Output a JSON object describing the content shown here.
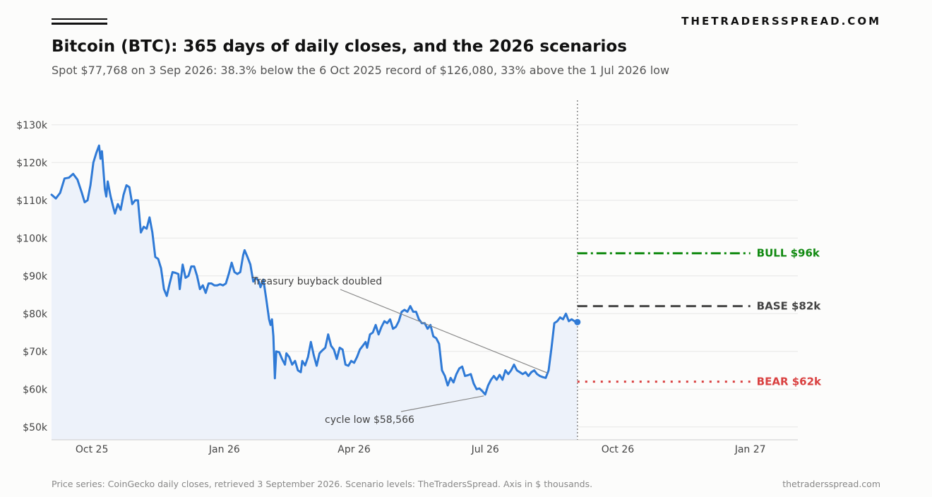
{
  "header": {
    "brand": "THETRADERSSPREAD.COM",
    "title": "Bitcoin (BTC): 365 days of daily closes, and the 2026 scenarios",
    "subtitle": "Spot $77,768 on 3 Sep 2026: 38.3% below the 6 Oct 2025 record of $126,080, 33% above the 1 Jul 2026 low"
  },
  "footer": {
    "source": "Price series: CoinGecko daily closes, retrieved 3 September 2026. Scenario levels: TheTradersSpread. Axis in $ thousands.",
    "site": "thetradersspread.com"
  },
  "chart_data": {
    "type": "line",
    "x_type": "date",
    "x_range": [
      "2025-09-03",
      "2027-02-03"
    ],
    "y_range": [
      46.6,
      136.5
    ],
    "y_ticks": [
      50,
      60,
      70,
      80,
      90,
      100,
      110,
      120,
      130
    ],
    "y_tick_labels": [
      "$50k",
      "$60k",
      "$70k",
      "$80k",
      "$90k",
      "$100k",
      "$110k",
      "$120k",
      "$130k"
    ],
    "x_ticks": [
      "2025-10-01",
      "2026-01-01",
      "2026-04-01",
      "2026-07-01",
      "2026-10-01",
      "2027-01-01"
    ],
    "x_tick_labels": [
      "Oct 25",
      "Jan 26",
      "Apr 26",
      "Jul 26",
      "Oct 26",
      "Jan 27"
    ],
    "grid": "horizontal",
    "colors": {
      "series": "#2f7ad6",
      "fill": "#edf2fa",
      "bull": "#118a11",
      "base": "#444444",
      "bear": "#d94040",
      "vline": "#888888"
    },
    "series": [
      {
        "points": [
          [
            "2025-09-03",
            111.5
          ],
          [
            "2025-09-06",
            110.5
          ],
          [
            "2025-09-09",
            112
          ],
          [
            "2025-09-12",
            115.8
          ],
          [
            "2025-09-15",
            116
          ],
          [
            "2025-09-18",
            117
          ],
          [
            "2025-09-21",
            115.5
          ],
          [
            "2025-09-24",
            112
          ],
          [
            "2025-09-26",
            109.5
          ],
          [
            "2025-09-28",
            110
          ],
          [
            "2025-09-30",
            114
          ],
          [
            "2025-10-02",
            120
          ],
          [
            "2025-10-04",
            122.5
          ],
          [
            "2025-10-06",
            124.5
          ],
          [
            "2025-10-07",
            121
          ],
          [
            "2025-10-08",
            123
          ],
          [
            "2025-10-10",
            113
          ],
          [
            "2025-10-11",
            111
          ],
          [
            "2025-10-12",
            115
          ],
          [
            "2025-10-14",
            111
          ],
          [
            "2025-10-16",
            108
          ],
          [
            "2025-10-17",
            106.5
          ],
          [
            "2025-10-19",
            109
          ],
          [
            "2025-10-21",
            107.5
          ],
          [
            "2025-10-23",
            111.5
          ],
          [
            "2025-10-25",
            114
          ],
          [
            "2025-10-27",
            113.5
          ],
          [
            "2025-10-29",
            109
          ],
          [
            "2025-10-31",
            110
          ],
          [
            "2025-11-02",
            110
          ],
          [
            "2025-11-04",
            101.5
          ],
          [
            "2025-11-06",
            103
          ],
          [
            "2025-11-08",
            102.5
          ],
          [
            "2025-11-10",
            105.5
          ],
          [
            "2025-11-12",
            101.5
          ],
          [
            "2025-11-14",
            95
          ],
          [
            "2025-11-16",
            94.5
          ],
          [
            "2025-11-18",
            92
          ],
          [
            "2025-11-20",
            86.5
          ],
          [
            "2025-11-22",
            84.7
          ],
          [
            "2025-11-24",
            88
          ],
          [
            "2025-11-26",
            91
          ],
          [
            "2025-11-28",
            90.8
          ],
          [
            "2025-11-30",
            90.5
          ],
          [
            "2025-12-01",
            86.5
          ],
          [
            "2025-12-03",
            93
          ],
          [
            "2025-12-05",
            89.5
          ],
          [
            "2025-12-07",
            90
          ],
          [
            "2025-12-09",
            92.5
          ],
          [
            "2025-12-11",
            92.5
          ],
          [
            "2025-12-13",
            90
          ],
          [
            "2025-12-15",
            86.5
          ],
          [
            "2025-12-17",
            87.5
          ],
          [
            "2025-12-19",
            85.5
          ],
          [
            "2025-12-21",
            88
          ],
          [
            "2025-12-23",
            88
          ],
          [
            "2025-12-25",
            87.5
          ],
          [
            "2025-12-27",
            87.5
          ],
          [
            "2025-12-29",
            87.8
          ],
          [
            "2025-12-31",
            87.5
          ],
          [
            "2026-01-02",
            88
          ],
          [
            "2026-01-04",
            90.5
          ],
          [
            "2026-01-06",
            93.5
          ],
          [
            "2026-01-08",
            91
          ],
          [
            "2026-01-10",
            90.5
          ],
          [
            "2026-01-12",
            91
          ],
          [
            "2026-01-14",
            95.5
          ],
          [
            "2026-01-15",
            96.8
          ],
          [
            "2026-01-17",
            95
          ],
          [
            "2026-01-19",
            93
          ],
          [
            "2026-01-21",
            88.5
          ],
          [
            "2026-01-23",
            89.5
          ],
          [
            "2026-01-25",
            88.5
          ],
          [
            "2026-01-26",
            87
          ],
          [
            "2026-01-28",
            89
          ],
          [
            "2026-01-30",
            84
          ],
          [
            "2026-02-01",
            78.5
          ],
          [
            "2026-02-02",
            77
          ],
          [
            "2026-02-03",
            78.5
          ],
          [
            "2026-02-04",
            74
          ],
          [
            "2026-02-05",
            62.9
          ],
          [
            "2026-02-06",
            70
          ],
          [
            "2026-02-08",
            69.8
          ],
          [
            "2026-02-10",
            68
          ],
          [
            "2026-02-12",
            66.5
          ],
          [
            "2026-02-13",
            69.5
          ],
          [
            "2026-02-15",
            68.5
          ],
          [
            "2026-02-17",
            66.5
          ],
          [
            "2026-02-19",
            67.5
          ],
          [
            "2026-02-21",
            65
          ],
          [
            "2026-02-23",
            64.5
          ],
          [
            "2026-02-24",
            67.5
          ],
          [
            "2026-02-26",
            66.3
          ],
          [
            "2026-02-28",
            68.5
          ],
          [
            "2026-03-02",
            72.5
          ],
          [
            "2026-03-04",
            69
          ],
          [
            "2026-03-06",
            66.2
          ],
          [
            "2026-03-08",
            69.5
          ],
          [
            "2026-03-10",
            70.3
          ],
          [
            "2026-03-12",
            71
          ],
          [
            "2026-03-14",
            74.5
          ],
          [
            "2026-03-16",
            71.5
          ],
          [
            "2026-03-18",
            70.5
          ],
          [
            "2026-03-20",
            68
          ],
          [
            "2026-03-22",
            71
          ],
          [
            "2026-03-24",
            70.5
          ],
          [
            "2026-03-26",
            66.5
          ],
          [
            "2026-03-28",
            66.2
          ],
          [
            "2026-03-30",
            67.5
          ],
          [
            "2026-04-01",
            67
          ],
          [
            "2026-04-03",
            68.5
          ],
          [
            "2026-04-05",
            70.5
          ],
          [
            "2026-04-07",
            71.5
          ],
          [
            "2026-04-09",
            72.5
          ],
          [
            "2026-04-10",
            71
          ],
          [
            "2026-04-12",
            74.5
          ],
          [
            "2026-04-14",
            75
          ],
          [
            "2026-04-16",
            77
          ],
          [
            "2026-04-18",
            74.5
          ],
          [
            "2026-04-20",
            76.5
          ],
          [
            "2026-04-22",
            78
          ],
          [
            "2026-04-24",
            77.5
          ],
          [
            "2026-04-26",
            78.5
          ],
          [
            "2026-04-28",
            76
          ],
          [
            "2026-04-30",
            76.5
          ],
          [
            "2026-05-02",
            78
          ],
          [
            "2026-05-04",
            80.5
          ],
          [
            "2026-05-06",
            81
          ],
          [
            "2026-05-08",
            80.5
          ],
          [
            "2026-05-10",
            82
          ],
          [
            "2026-05-12",
            80.5
          ],
          [
            "2026-05-14",
            80.5
          ],
          [
            "2026-05-16",
            78.5
          ],
          [
            "2026-05-18",
            77.5
          ],
          [
            "2026-05-20",
            77.5
          ],
          [
            "2026-05-22",
            76
          ],
          [
            "2026-05-24",
            77
          ],
          [
            "2026-05-26",
            74
          ],
          [
            "2026-05-28",
            73.5
          ],
          [
            "2026-05-30",
            72
          ],
          [
            "2026-06-01",
            65
          ],
          [
            "2026-06-03",
            63.5
          ],
          [
            "2026-06-05",
            61
          ],
          [
            "2026-06-07",
            63
          ],
          [
            "2026-06-09",
            61.8
          ],
          [
            "2026-06-11",
            64
          ],
          [
            "2026-06-13",
            65.5
          ],
          [
            "2026-06-15",
            66
          ],
          [
            "2026-06-17",
            63.5
          ],
          [
            "2026-06-19",
            63.7
          ],
          [
            "2026-06-21",
            64
          ],
          [
            "2026-06-23",
            61.5
          ],
          [
            "2026-06-25",
            60
          ],
          [
            "2026-06-27",
            60.2
          ],
          [
            "2026-06-29",
            59.5
          ],
          [
            "2026-07-01",
            58.6
          ],
          [
            "2026-07-03",
            61
          ],
          [
            "2026-07-05",
            62.5
          ],
          [
            "2026-07-07",
            63.5
          ],
          [
            "2026-07-09",
            62.5
          ],
          [
            "2026-07-11",
            63.8
          ],
          [
            "2026-07-13",
            62.5
          ],
          [
            "2026-07-15",
            65
          ],
          [
            "2026-07-17",
            64
          ],
          [
            "2026-07-19",
            65
          ],
          [
            "2026-07-21",
            66.5
          ],
          [
            "2026-07-23",
            65
          ],
          [
            "2026-07-25",
            64.5
          ],
          [
            "2026-07-27",
            64
          ],
          [
            "2026-07-29",
            64.5
          ],
          [
            "2026-07-31",
            63.5
          ],
          [
            "2026-08-02",
            64.5
          ],
          [
            "2026-08-04",
            65
          ],
          [
            "2026-08-06",
            64
          ],
          [
            "2026-08-08",
            63.5
          ],
          [
            "2026-08-10",
            63.2
          ],
          [
            "2026-08-12",
            63
          ],
          [
            "2026-08-14",
            65
          ],
          [
            "2026-08-16",
            71
          ],
          [
            "2026-08-18",
            77.5
          ],
          [
            "2026-08-20",
            78
          ],
          [
            "2026-08-22",
            79
          ],
          [
            "2026-08-24",
            78.5
          ],
          [
            "2026-08-26",
            80
          ],
          [
            "2026-08-28",
            78
          ],
          [
            "2026-08-30",
            78.5
          ],
          [
            "2026-09-01",
            78
          ],
          [
            "2026-09-03",
            77.768
          ]
        ]
      }
    ],
    "endpoint": {
      "x": "2026-09-03",
      "y": 77.768
    },
    "today_marker": "2026-09-03",
    "scenarios": [
      {
        "key": "bull",
        "label": "BULL  $96k",
        "value": 96,
        "style": "dash-dot",
        "start": "2026-09-03",
        "end": "2027-01-01"
      },
      {
        "key": "base",
        "label": "BASE  $82k",
        "value": 82,
        "style": "dashed",
        "start": "2026-09-03",
        "end": "2027-01-01"
      },
      {
        "key": "bear",
        "label": "BEAR  $62k",
        "value": 62,
        "style": "dotted",
        "start": "2026-09-03",
        "end": "2027-01-01"
      }
    ],
    "annotations": [
      {
        "text": "Treasury buyback doubled",
        "target": [
          "2026-08-16",
          64.5
        ]
      },
      {
        "text": "cycle low $58,566",
        "target": [
          "2026-07-01",
          58.6
        ]
      }
    ]
  }
}
